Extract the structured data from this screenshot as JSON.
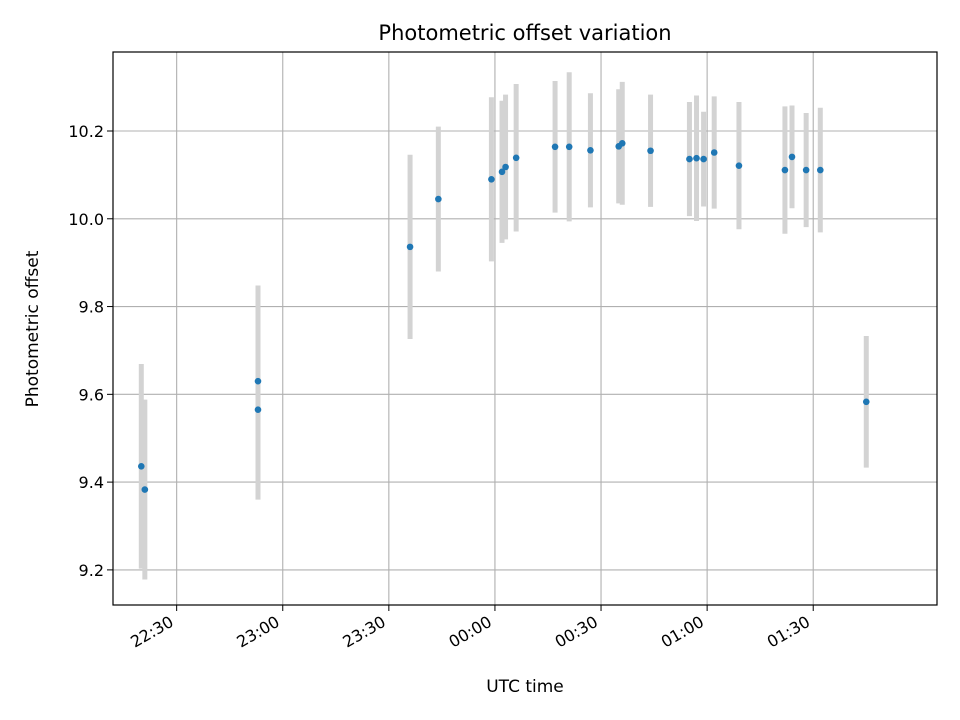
{
  "chart_data": {
    "type": "scatter",
    "title": "Photometric offset variation",
    "xlabel": "UTC time",
    "ylabel": "Photometric offset",
    "x_axis": {
      "type": "time",
      "range": [
        "22:12",
        "02:05"
      ],
      "ticks": [
        "22:30",
        "23:00",
        "23:30",
        "00:00",
        "00:30",
        "01:00",
        "01:30"
      ]
    },
    "y_axis": {
      "range": [
        9.12,
        10.38
      ],
      "ticks": [
        "9.2",
        "9.4",
        "9.6",
        "9.8",
        "10.0",
        "10.2"
      ]
    },
    "grid": true,
    "colors": {
      "point": "#1f77b4",
      "errorbar": "#d3d3d3",
      "grid": "#b0b0b0"
    },
    "points": [
      {
        "time": "22:20",
        "y": 9.436,
        "err": 0.233
      },
      {
        "time": "22:21",
        "y": 9.383,
        "err": 0.205
      },
      {
        "time": "22:53",
        "y": 9.565,
        "err": 0.205
      },
      {
        "time": "22:53",
        "y": 9.63,
        "err": 0.218
      },
      {
        "time": "23:36",
        "y": 9.936,
        "err": 0.21
      },
      {
        "time": "23:44",
        "y": 10.045,
        "err": 0.165
      },
      {
        "time": "23:59",
        "y": 10.09,
        "err": 0.187
      },
      {
        "time": "00:02",
        "y": 10.107,
        "err": 0.162
      },
      {
        "time": "00:03",
        "y": 10.118,
        "err": 0.165
      },
      {
        "time": "00:06",
        "y": 10.139,
        "err": 0.168
      },
      {
        "time": "00:17",
        "y": 10.164,
        "err": 0.15
      },
      {
        "time": "00:21",
        "y": 10.164,
        "err": 0.17
      },
      {
        "time": "00:27",
        "y": 10.156,
        "err": 0.13
      },
      {
        "time": "00:35",
        "y": 10.165,
        "err": 0.13
      },
      {
        "time": "00:36",
        "y": 10.172,
        "err": 0.14
      },
      {
        "time": "00:44",
        "y": 10.155,
        "err": 0.128
      },
      {
        "time": "00:55",
        "y": 10.136,
        "err": 0.13
      },
      {
        "time": "00:57",
        "y": 10.138,
        "err": 0.143
      },
      {
        "time": "00:59",
        "y": 10.136,
        "err": 0.108
      },
      {
        "time": "01:02",
        "y": 10.151,
        "err": 0.128
      },
      {
        "time": "01:09",
        "y": 10.121,
        "err": 0.145
      },
      {
        "time": "01:22",
        "y": 10.111,
        "err": 0.145
      },
      {
        "time": "01:24",
        "y": 10.141,
        "err": 0.117
      },
      {
        "time": "01:28",
        "y": 10.111,
        "err": 0.13
      },
      {
        "time": "01:32",
        "y": 10.111,
        "err": 0.142
      },
      {
        "time": "01:45",
        "y": 9.583,
        "err": 0.15
      }
    ]
  }
}
